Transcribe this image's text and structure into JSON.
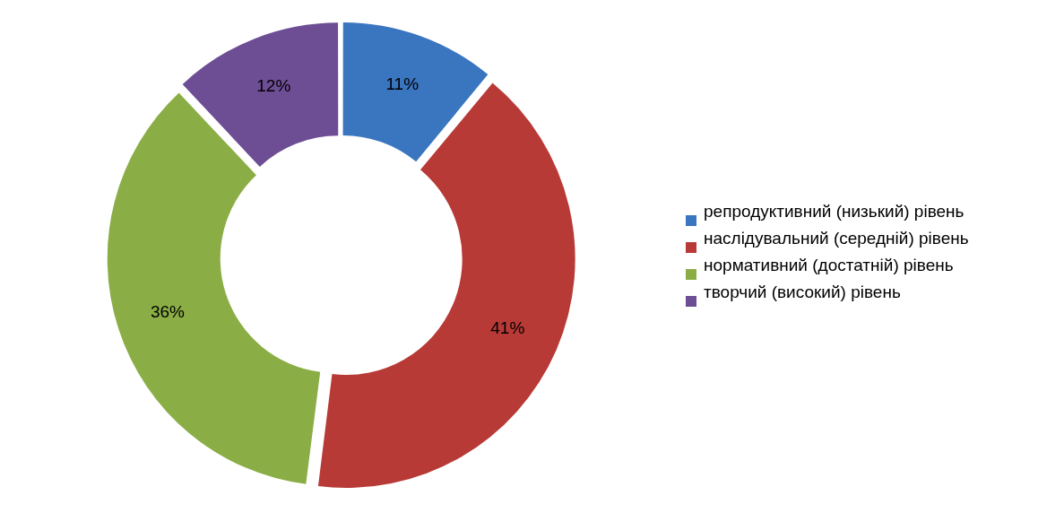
{
  "chart_data": {
    "type": "donut",
    "categories": [
      " репродуктивний (низький) рівень",
      "наслідувальний (середній) рівень",
      "нормативний (достатній) рівень",
      "творчий (високий) рівень"
    ],
    "values": [
      11,
      41,
      36,
      12
    ],
    "colors": [
      "#3a75c0",
      "#b83a37",
      "#8aae45",
      "#6d4d94"
    ],
    "value_labels": [
      "11%",
      "41%",
      "36%",
      "12%"
    ],
    "legend": "right"
  }
}
